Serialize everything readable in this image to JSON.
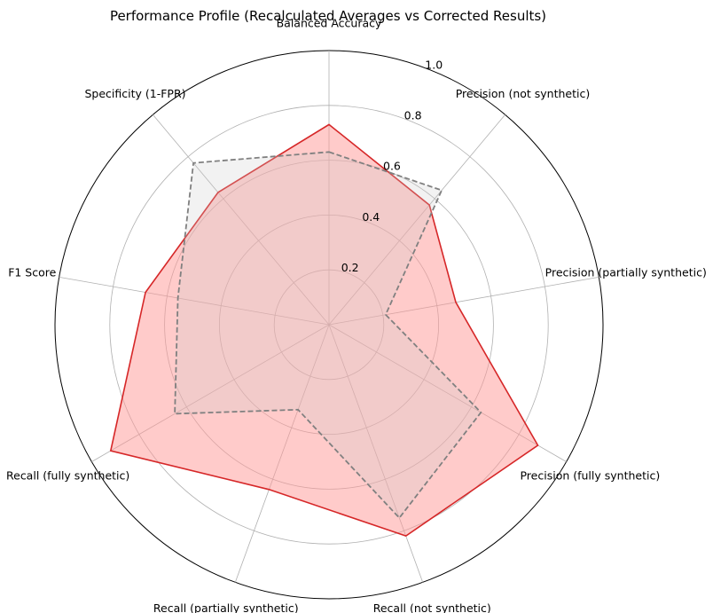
{
  "chart_data": {
    "type": "radar",
    "title": "Performance Profile (Recalculated Averages vs Corrected Results)",
    "axes": [
      "Balanced Accuracy",
      "Precision (not synthetic)",
      "Precision (partially synthetic)",
      "Precision (fully synthetic)",
      "Recall (not synthetic)",
      "Recall (partially synthetic)",
      "Recall (fully synthetic)",
      "F1 Score",
      "Specificity (1-FPR)"
    ],
    "radial_ticks": [
      "0.2",
      "0.4",
      "0.6",
      "0.8",
      "1.0"
    ],
    "radial_tick_values": [
      0.2,
      0.4,
      0.6,
      0.8,
      1.0
    ],
    "rlim": [
      0,
      1.0
    ],
    "grid": true,
    "series": [
      {
        "style": "solid",
        "line_color": "#d62728",
        "fill_color": "#ff9896",
        "values": [
          0.73,
          0.57,
          0.47,
          0.88,
          0.82,
          0.64,
          0.92,
          0.68,
          0.63
        ]
      },
      {
        "style": "dashed",
        "line_color": "#808080",
        "fill_color": "#cccccc",
        "values": [
          0.63,
          0.64,
          0.21,
          0.64,
          0.75,
          0.33,
          0.65,
          0.56,
          0.77
        ]
      }
    ]
  }
}
